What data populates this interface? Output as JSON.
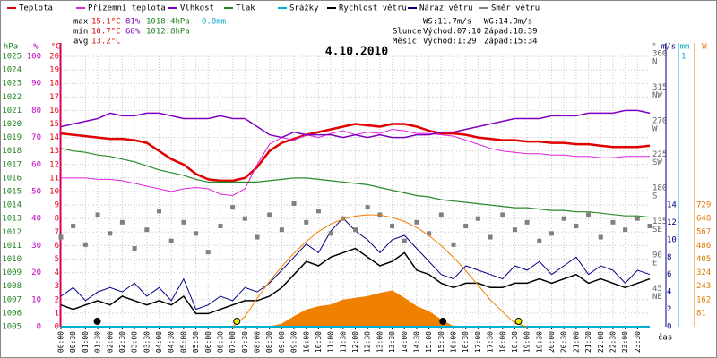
{
  "chart_data": {
    "type": "line",
    "title": "4.10.2010",
    "xlabel": "čas",
    "stats": [
      {
        "label": "max",
        "temp": "15.1°C",
        "hum": "81%",
        "press": "1018.4hPa",
        "rain": "0.0mm"
      },
      {
        "label": "min",
        "temp": "10.7°C",
        "hum": "68%",
        "press": "1012.8hPa"
      },
      {
        "label": "avg",
        "temp": "13.2°C"
      }
    ],
    "info": {
      "ws": "WS:11.7m/s",
      "wg": "WG:14.9m/s",
      "sun": "Slunce",
      "sunrise": "Východ:07:10",
      "sunset": "Západ:18:39",
      "moon": "Měsíc",
      "moonrise": "Východ:1:29",
      "moonset": "Západ:15:34"
    },
    "xlim": [
      0,
      24
    ],
    "xticks": [
      {
        "value": 0,
        "label": "00:00"
      },
      {
        "value": 0.5,
        "label": "00:30"
      },
      {
        "value": 1,
        "label": "01:00"
      },
      {
        "value": 1.5,
        "label": "01:30"
      },
      {
        "value": 2,
        "label": "02:00"
      },
      {
        "value": 2.5,
        "label": "02:30"
      },
      {
        "value": 3,
        "label": "03:00"
      },
      {
        "value": 3.5,
        "label": "03:30"
      },
      {
        "value": 4,
        "label": "04:00"
      },
      {
        "value": 4.5,
        "label": "04:30"
      },
      {
        "value": 5,
        "label": "05:00"
      },
      {
        "value": 5.5,
        "label": "05:30"
      },
      {
        "value": 6,
        "label": "06:00"
      },
      {
        "value": 6.5,
        "label": "06:30"
      },
      {
        "value": 7,
        "label": "07:00"
      },
      {
        "value": 7.5,
        "label": "07:30"
      },
      {
        "value": 8,
        "label": "08:00"
      },
      {
        "value": 8.5,
        "label": "08:30"
      },
      {
        "value": 9,
        "label": "09:00"
      },
      {
        "value": 9.5,
        "label": "09:30"
      },
      {
        "value": 10,
        "label": "10:00"
      },
      {
        "value": 10.5,
        "label": "10:30"
      },
      {
        "value": 11,
        "label": "11:00"
      },
      {
        "value": 11.5,
        "label": "11:30"
      },
      {
        "value": 12,
        "label": "12:00"
      },
      {
        "value": 12.5,
        "label": "12:30"
      },
      {
        "value": 13,
        "label": "13:00"
      },
      {
        "value": 13.5,
        "label": "13:30"
      },
      {
        "value": 14,
        "label": "14:00"
      },
      {
        "value": 14.5,
        "label": "14:30"
      },
      {
        "value": 15,
        "label": "15:00"
      },
      {
        "value": 15.5,
        "label": "15:30"
      },
      {
        "value": 16,
        "label": "16:00"
      },
      {
        "value": 16.5,
        "label": "16:30"
      },
      {
        "value": 17,
        "label": "17:00"
      },
      {
        "value": 17.5,
        "label": "17:30"
      },
      {
        "value": 18,
        "label": "18:00"
      },
      {
        "value": 18.5,
        "label": "18:30"
      },
      {
        "value": 19,
        "label": "19:00"
      },
      {
        "value": 19.5,
        "label": "19:30"
      },
      {
        "value": 20,
        "label": "20:00"
      },
      {
        "value": 20.5,
        "label": "20:30"
      },
      {
        "value": 21,
        "label": "21:00"
      },
      {
        "value": 21.5,
        "label": "21:30"
      },
      {
        "value": 22,
        "label": "22:00"
      },
      {
        "value": 22.5,
        "label": "22:30"
      },
      {
        "value": 23,
        "label": "23:00"
      },
      {
        "value": 23.5,
        "label": "23:30"
      }
    ],
    "grid": true,
    "axes": {
      "pressure": {
        "label": "hPa",
        "color": "#208020",
        "lim": [
          1005,
          1025
        ],
        "ticks": [
          1005,
          1006,
          1007,
          1008,
          1009,
          1010,
          1011,
          1012,
          1013,
          1014,
          1015,
          1016,
          1017,
          1018,
          1019,
          1020,
          1021,
          1022,
          1023,
          1024,
          1025
        ]
      },
      "humidity": {
        "label": "%",
        "color": "#c000c0",
        "lim": [
          0,
          100
        ],
        "ticks": [
          0,
          10,
          20,
          30,
          40,
          50,
          60,
          70,
          80,
          90,
          100
        ]
      },
      "temp": {
        "label": "°C",
        "color": "#e00000",
        "lim": [
          0,
          20
        ],
        "ticks": [
          0,
          1,
          2,
          3,
          4,
          5,
          6,
          7,
          8,
          9,
          10,
          11,
          12,
          13,
          14,
          15,
          16,
          17,
          18,
          19,
          20
        ]
      },
      "direction": {
        "label": "°",
        "color": "#606060",
        "lim": [
          0,
          360
        ],
        "ticks": [
          45,
          90,
          135,
          180,
          225,
          270,
          315,
          360
        ],
        "names": [
          "NE",
          "E",
          "SE",
          "S",
          "SW",
          "W",
          "NW",
          "N"
        ]
      },
      "wind": {
        "label": "m/s",
        "color": "#000080",
        "lim": [
          0,
          14
        ],
        "ticks": [
          0,
          2,
          4,
          6,
          8,
          10,
          12,
          14
        ]
      },
      "rain": {
        "label": "mm",
        "color": "#00a8c8",
        "lim": [
          0,
          1
        ],
        "ticks": [
          1
        ]
      },
      "solar": {
        "label": "W",
        "color": "#e07800",
        "lim": [
          0,
          729
        ],
        "ticks": [
          81,
          162,
          243,
          324,
          405,
          486,
          567,
          648,
          729
        ]
      }
    },
    "x": [
      0,
      0.5,
      1,
      1.5,
      2,
      2.5,
      3,
      3.5,
      4,
      4.5,
      5,
      5.5,
      6,
      6.5,
      7,
      7.5,
      8,
      8.5,
      9,
      9.5,
      10,
      10.5,
      11,
      11.5,
      12,
      12.5,
      13,
      13.5,
      14,
      14.5,
      15,
      15.5,
      16,
      16.5,
      17,
      17.5,
      18,
      18.5,
      19,
      19.5,
      20,
      20.5,
      21,
      21.5,
      22,
      22.5,
      23,
      23.5,
      24
    ],
    "series": [
      {
        "name": "Teplota",
        "color": "#e00000",
        "axis": "temp",
        "style": "line",
        "width": 2.5,
        "values": [
          14.3,
          14.2,
          14.1,
          14.0,
          13.9,
          13.9,
          13.8,
          13.6,
          13.0,
          12.4,
          12.0,
          11.3,
          10.9,
          10.8,
          10.8,
          11.0,
          11.8,
          13.0,
          13.6,
          13.9,
          14.2,
          14.4,
          14.6,
          14.8,
          15.0,
          14.9,
          14.8,
          15.0,
          15.0,
          14.8,
          14.5,
          14.3,
          14.3,
          14.2,
          14.0,
          13.9,
          13.8,
          13.8,
          13.7,
          13.7,
          13.6,
          13.6,
          13.5,
          13.5,
          13.4,
          13.3,
          13.3,
          13.3,
          13.4
        ]
      },
      {
        "name": "Přízemní teplota",
        "color": "#e020e0",
        "axis": "temp",
        "style": "line",
        "width": 1,
        "values": [
          11.0,
          11.0,
          11.0,
          10.9,
          10.9,
          10.8,
          10.6,
          10.4,
          10.2,
          10.0,
          10.2,
          10.3,
          10.2,
          9.8,
          9.7,
          10.2,
          12.0,
          13.5,
          14.0,
          13.8,
          14.2,
          14.0,
          14.3,
          14.5,
          14.2,
          14.4,
          14.3,
          14.6,
          14.5,
          14.3,
          14.3,
          14.2,
          14.1,
          13.8,
          13.5,
          13.2,
          13.0,
          12.9,
          12.8,
          12.8,
          12.7,
          12.7,
          12.6,
          12.6,
          12.5,
          12.5,
          12.6,
          12.6,
          12.6
        ]
      },
      {
        "name": "Vlhkost",
        "color": "#8000c0",
        "axis": "humidity",
        "style": "line",
        "width": 1.5,
        "values": [
          74,
          75,
          76,
          77,
          79,
          78,
          78,
          79,
          79,
          78,
          77,
          77,
          77,
          78,
          77,
          77,
          74,
          71,
          70,
          72,
          71,
          71,
          71,
          70,
          71,
          70,
          71,
          70,
          70,
          71,
          71,
          72,
          72,
          73,
          74,
          75,
          76,
          77,
          77,
          77,
          78,
          78,
          78,
          79,
          79,
          79,
          80,
          80,
          79
        ]
      },
      {
        "name": "Tlak",
        "color": "#2a8a2a",
        "axis": "pressure",
        "style": "line",
        "width": 1.2,
        "values": [
          1018.2,
          1018.0,
          1017.9,
          1017.7,
          1017.6,
          1017.4,
          1017.2,
          1016.9,
          1016.6,
          1016.4,
          1016.2,
          1015.9,
          1015.7,
          1015.7,
          1015.7,
          1015.7,
          1015.7,
          1015.8,
          1015.9,
          1016.0,
          1016.0,
          1015.9,
          1015.8,
          1015.7,
          1015.6,
          1015.5,
          1015.3,
          1015.1,
          1014.9,
          1014.7,
          1014.6,
          1014.4,
          1014.3,
          1014.2,
          1014.1,
          1014.0,
          1013.9,
          1013.8,
          1013.8,
          1013.7,
          1013.6,
          1013.6,
          1013.5,
          1013.5,
          1013.4,
          1013.3,
          1013.2,
          1013.2,
          1013.1
        ]
      },
      {
        "name": "Srážky",
        "color": "#00b0d0",
        "axis": "rain",
        "style": "line",
        "width": 2,
        "values": [
          0,
          0,
          0,
          0,
          0,
          0,
          0,
          0,
          0,
          0,
          0,
          0,
          0,
          0,
          0,
          0,
          0,
          0,
          0,
          0,
          0,
          0,
          0,
          0,
          0,
          0,
          0,
          0,
          0,
          0,
          0,
          0,
          0,
          0,
          0,
          0,
          0,
          0,
          0,
          0,
          0,
          0,
          0,
          0,
          0,
          0,
          0,
          0,
          0
        ]
      },
      {
        "name": "Rychlost větru",
        "color": "#000000",
        "axis": "wind",
        "style": "line",
        "width": 1.5,
        "values": [
          2.5,
          2.0,
          2.5,
          3.0,
          2.5,
          3.5,
          3.0,
          2.5,
          3.0,
          2.5,
          3.5,
          1.5,
          1.5,
          2.0,
          2.5,
          3.0,
          3.0,
          3.5,
          4.5,
          6.0,
          7.5,
          7.0,
          8.0,
          8.5,
          9.0,
          8.0,
          7.0,
          7.5,
          8.5,
          6.5,
          6.0,
          5.0,
          4.5,
          5.0,
          5.0,
          4.5,
          4.5,
          5.0,
          5.0,
          5.5,
          5.0,
          5.5,
          6.0,
          5.0,
          5.5,
          5.0,
          4.5,
          5.0,
          5.5
        ]
      },
      {
        "name": "Náraz větru",
        "color": "#000080",
        "axis": "wind",
        "style": "line",
        "width": 1,
        "values": [
          3.5,
          4.5,
          3.0,
          4.0,
          4.5,
          4.0,
          5.0,
          3.5,
          4.5,
          3.0,
          5.5,
          2.0,
          2.5,
          3.5,
          3.0,
          4.5,
          4.0,
          5.0,
          6.5,
          8.0,
          9.5,
          8.5,
          11.0,
          12.5,
          11.0,
          10.0,
          8.5,
          10.0,
          10.5,
          9.0,
          7.5,
          6.0,
          5.5,
          7.0,
          6.5,
          6.0,
          5.5,
          7.0,
          6.5,
          7.5,
          6.0,
          7.0,
          8.0,
          6.0,
          7.0,
          6.5,
          5.0,
          6.5,
          6.0
        ]
      },
      {
        "name": "Směr větru",
        "color": "#808080",
        "axis": "direction",
        "style": "scatter",
        "values": [
          120,
          135,
          110,
          150,
          125,
          140,
          105,
          130,
          155,
          115,
          140,
          125,
          100,
          135,
          160,
          145,
          120,
          150,
          130,
          165,
          140,
          155,
          125,
          145,
          130,
          160,
          150,
          135,
          115,
          140,
          125,
          150,
          110,
          135,
          145,
          120,
          150,
          130,
          140,
          115,
          125,
          145,
          135,
          150,
          120,
          140,
          130,
          145,
          135
        ]
      },
      {
        "color": "#f08000",
        "axis": "solar",
        "style": "area",
        "values": [
          0,
          0,
          0,
          0,
          0,
          0,
          0,
          0,
          0,
          0,
          0,
          0,
          0,
          0,
          0,
          0,
          0,
          0,
          15,
          60,
          100,
          120,
          130,
          160,
          170,
          180,
          200,
          215,
          170,
          120,
          90,
          40,
          0,
          0,
          0,
          0,
          0,
          0,
          0,
          0,
          0,
          0,
          0,
          0,
          0,
          0,
          0,
          0,
          0
        ]
      },
      {
        "color": "#f08000",
        "axis": "solar",
        "style": "line",
        "width": 1,
        "values": [
          null,
          null,
          null,
          null,
          null,
          null,
          null,
          null,
          null,
          null,
          null,
          null,
          null,
          null,
          0,
          60,
          170,
          270,
          360,
          440,
          510,
          570,
          615,
          645,
          662,
          670,
          668,
          655,
          630,
          595,
          545,
          485,
          415,
          335,
          250,
          160,
          90,
          20,
          0,
          null,
          null,
          null,
          null,
          null,
          null,
          null,
          null,
          null,
          null
        ]
      }
    ],
    "events": [
      {
        "x": 1.48,
        "color": "#000000"
      },
      {
        "x": 7.17,
        "color": "#f0f000"
      },
      {
        "x": 15.57,
        "color": "#000000"
      },
      {
        "x": 18.65,
        "color": "#f0f000"
      }
    ]
  }
}
